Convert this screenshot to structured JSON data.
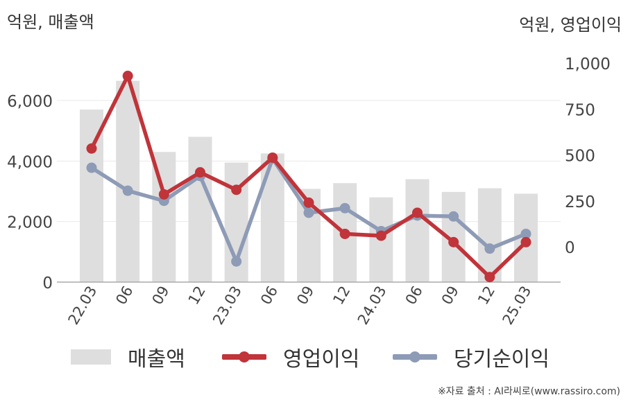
{
  "units": {
    "left": "억원, 매출액",
    "right": "억원, 영업이익"
  },
  "chart_data": {
    "type": "bar+line",
    "categories": [
      "22.03",
      "06",
      "09",
      "12",
      "23.03",
      "06",
      "09",
      "12",
      "24.03",
      "06",
      "09",
      "12",
      "25.03"
    ],
    "left_axis": {
      "min": 0,
      "max": 7000,
      "ticks": [
        0,
        2000,
        4000,
        6000
      ],
      "tick_labels": [
        "0",
        "2,000",
        "4,000",
        "6,000"
      ]
    },
    "right_axis": {
      "min": -200,
      "max": 1000,
      "ticks": [
        0,
        250,
        500,
        750,
        1000
      ],
      "tick_labels": [
        "0",
        "250",
        "500",
        "750",
        "1,000"
      ]
    },
    "series": [
      {
        "name": "매출액",
        "kind": "bar",
        "axis": "left",
        "color": "#dedede",
        "values": [
          5700,
          6650,
          4300,
          4800,
          3950,
          4250,
          3080,
          3270,
          2800,
          3400,
          2980,
          3100,
          2920
        ]
      },
      {
        "name": "영업이익",
        "kind": "line",
        "axis": "right",
        "color": "#c0343a",
        "values": [
          535,
          930,
          285,
          405,
          310,
          485,
          240,
          70,
          60,
          185,
          25,
          -165,
          25
        ]
      },
      {
        "name": "당기순이익",
        "kind": "line",
        "axis": "right",
        "color": "#8e9bb6",
        "values": [
          430,
          305,
          250,
          385,
          -80,
          480,
          185,
          210,
          85,
          170,
          165,
          -10,
          70
        ]
      }
    ],
    "grid": true,
    "legend_position": "bottom"
  },
  "source": "※자료 출처 : AI라씨로(www.rassiro.com)"
}
